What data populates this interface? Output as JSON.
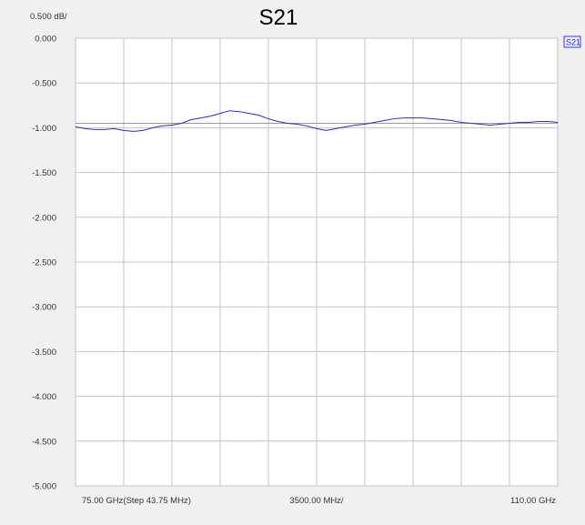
{
  "chart_data": {
    "type": "line",
    "title": "S21",
    "scale_label": "0.500 dB/",
    "ylim": [
      -5.0,
      0.0
    ],
    "yticks": [
      0.0,
      -0.5,
      -1.0,
      -1.5,
      -2.0,
      -2.5,
      -3.0,
      -3.5,
      -4.0,
      -4.5,
      -5.0
    ],
    "ytick_labels": [
      "0.000",
      "-0.500",
      "-1.000",
      "-1.500",
      "-2.000",
      "-2.500",
      "-3.000",
      "-3.500",
      "-4.000",
      "-4.500",
      "-5.000"
    ],
    "xlim": [
      75.0,
      110.0
    ],
    "x_divisions": 10,
    "x_labels": {
      "start": "75.00 GHz(Step 43.75 MHz)",
      "center": "3500.00 MHz/",
      "end": "110.00 GHz"
    },
    "grid": true,
    "reference_level": -0.95,
    "legend": {
      "placement": "top-right",
      "label": "S21"
    },
    "colors": {
      "trace": "#2b2bbd",
      "grid": "#c4c4c4",
      "reference": "#9a9a9a",
      "plot_bg": "#ffffff",
      "page_bg": "#f0f0f0",
      "legend_box": "#3333ff"
    },
    "series": [
      {
        "x": [
          75.0,
          75.7,
          76.4,
          77.1,
          77.8,
          78.5,
          79.2,
          79.9,
          80.6,
          81.3,
          82.0,
          82.7,
          83.4,
          84.1,
          84.8,
          85.5,
          86.2,
          86.9,
          87.6,
          88.3,
          89.0,
          89.7,
          90.4,
          91.1,
          91.8,
          92.5,
          93.2,
          93.9,
          94.6,
          95.3,
          96.0,
          96.7,
          97.4,
          98.1,
          98.8,
          99.5,
          100.2,
          100.9,
          101.6,
          102.3,
          103.0,
          103.7,
          104.4,
          105.1,
          105.8,
          106.5,
          107.2,
          107.9,
          108.6,
          109.3,
          110.0
        ],
        "values": [
          -0.99,
          -1.01,
          -1.02,
          -1.02,
          -1.01,
          -1.03,
          -1.04,
          -1.03,
          -1.0,
          -0.98,
          -0.97,
          -0.95,
          -0.91,
          -0.89,
          -0.87,
          -0.84,
          -0.81,
          -0.82,
          -0.84,
          -0.86,
          -0.9,
          -0.93,
          -0.95,
          -0.96,
          -0.98,
          -1.01,
          -1.03,
          -1.01,
          -0.99,
          -0.97,
          -0.96,
          -0.94,
          -0.92,
          -0.9,
          -0.89,
          -0.89,
          -0.89,
          -0.9,
          -0.91,
          -0.92,
          -0.94,
          -0.95,
          -0.96,
          -0.97,
          -0.96,
          -0.95,
          -0.94,
          -0.94,
          -0.93,
          -0.93,
          -0.94
        ]
      }
    ]
  }
}
